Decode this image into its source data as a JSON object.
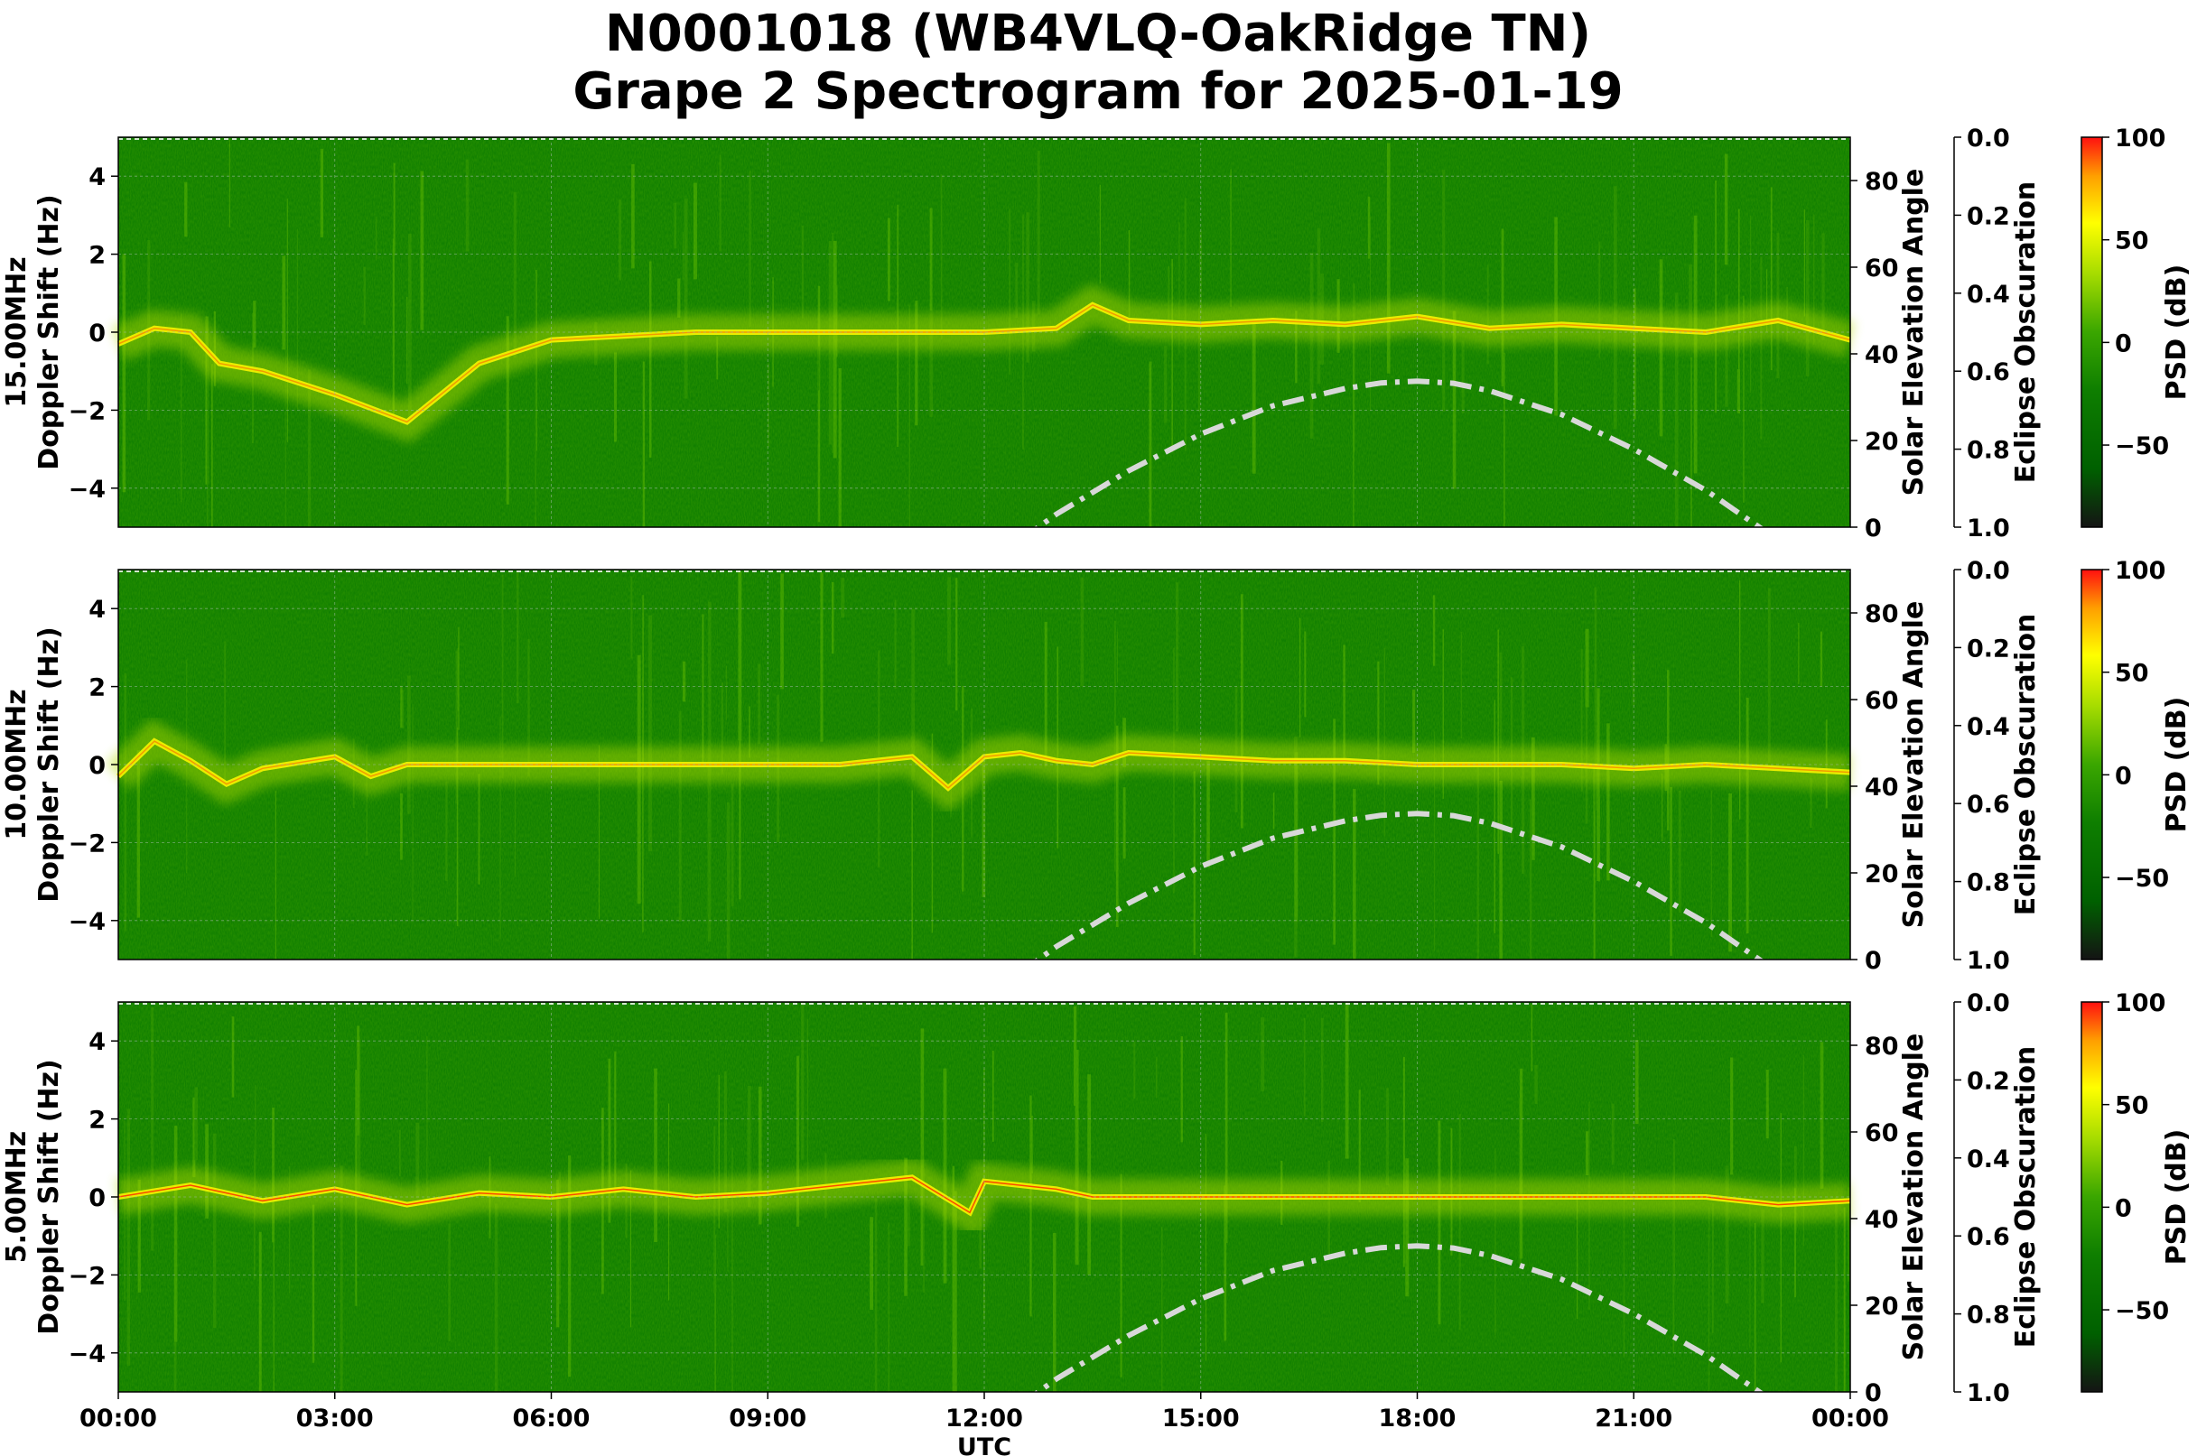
{
  "title": {
    "line1": "N0001018 (WB4VLQ-OakRidge TN)",
    "line2": "Grape 2 Spectrogram for 2025-01-19"
  },
  "colors": {
    "background_green": "#0a7a00",
    "trace_yellow": "#f0f000",
    "trace_red": "#ff2000",
    "solar_curve": "#d8d8d8",
    "colormap": [
      "#141414",
      "#006400",
      "#1a8a00",
      "#5cbf00",
      "#b4e000",
      "#ffff00",
      "#ffb000",
      "#ff1a00"
    ]
  },
  "chart_data": {
    "type": "heatmap",
    "subtype": "spectrogram",
    "x_axis": {
      "label": "UTC",
      "range": [
        "00:00",
        "24:00"
      ],
      "ticks": [
        "00:00",
        "03:00",
        "06:00",
        "09:00",
        "12:00",
        "15:00",
        "18:00",
        "21:00",
        "00:00"
      ]
    },
    "solar_elevation": {
      "hours": [
        12.5,
        13,
        14,
        15,
        16,
        17,
        17.5,
        18,
        18.5,
        19,
        20,
        21,
        22,
        23
      ],
      "degrees": [
        -3,
        3,
        13,
        21.5,
        28,
        32,
        33.3,
        33.7,
        33.2,
        31.5,
        26,
        18,
        8.5,
        -3
      ]
    },
    "panels": [
      {
        "frequency": "15.00MHz",
        "ylabel": "Doppler Shift (Hz)",
        "ylim": [
          -5,
          5
        ],
        "yticks": [
          "4",
          "2",
          "0",
          "−2",
          "−4"
        ],
        "elev_label": "Solar Elevation Angle",
        "elev_ylim": [
          0,
          90
        ],
        "elev_ticks": [
          "80",
          "60",
          "40",
          "20",
          "0"
        ],
        "eclipse_label": "Eclipse Obscuration",
        "eclipse_ylim": [
          1.0,
          0.0
        ],
        "eclipse_ticks": [
          "0.0",
          "0.2",
          "0.4",
          "0.6",
          "0.8",
          "1.0"
        ],
        "psd_label": "PSD (dB)",
        "psd_range": [
          -90,
          100
        ],
        "psd_ticks": [
          "100",
          "50",
          "0",
          "−50"
        ],
        "trace": {
          "hours": [
            0,
            0.5,
            1.0,
            1.4,
            2,
            3,
            4,
            5,
            6,
            7,
            8,
            9,
            10,
            11,
            12,
            13,
            13.5,
            14,
            15,
            16,
            17,
            18,
            19,
            20,
            21,
            22,
            23,
            24
          ],
          "doppler_hz": [
            -0.3,
            0.1,
            0.0,
            -0.8,
            -1.0,
            -1.6,
            -2.3,
            -0.8,
            -0.2,
            -0.1,
            0.0,
            0.0,
            0.0,
            0.0,
            0.0,
            0.1,
            0.7,
            0.3,
            0.2,
            0.3,
            0.2,
            0.4,
            0.1,
            0.2,
            0.1,
            0.0,
            0.3,
            -0.2
          ]
        }
      },
      {
        "frequency": "10.00MHz",
        "ylabel": "Doppler Shift (Hz)",
        "ylim": [
          -5,
          5
        ],
        "yticks": [
          "4",
          "2",
          "0",
          "−2",
          "−4"
        ],
        "elev_label": "Solar Elevation Angle",
        "elev_ylim": [
          0,
          90
        ],
        "elev_ticks": [
          "80",
          "60",
          "40",
          "20",
          "0"
        ],
        "eclipse_label": "Eclipse Obscuration",
        "eclipse_ylim": [
          1.0,
          0.0
        ],
        "eclipse_ticks": [
          "0.0",
          "0.2",
          "0.4",
          "0.6",
          "0.8",
          "1.0"
        ],
        "psd_label": "PSD (dB)",
        "psd_range": [
          -90,
          100
        ],
        "psd_ticks": [
          "100",
          "50",
          "0",
          "−50"
        ],
        "trace": {
          "hours": [
            0,
            0.5,
            1.0,
            1.5,
            2,
            3,
            3.5,
            4,
            6,
            8,
            9,
            10,
            11,
            11.5,
            12,
            12.5,
            13,
            13.5,
            14,
            15,
            16,
            17,
            18,
            19,
            20,
            21,
            22,
            23,
            24
          ],
          "doppler_hz": [
            -0.3,
            0.6,
            0.1,
            -0.5,
            -0.1,
            0.2,
            -0.3,
            0.0,
            0.0,
            0.0,
            0.0,
            0.0,
            0.2,
            -0.6,
            0.2,
            0.3,
            0.1,
            0.0,
            0.3,
            0.2,
            0.1,
            0.1,
            0.0,
            0.0,
            0.0,
            -0.1,
            0.0,
            -0.1,
            -0.2
          ]
        }
      },
      {
        "frequency": "5.00MHz",
        "ylabel": "Doppler Shift (Hz)",
        "ylim": [
          -5,
          5
        ],
        "yticks": [
          "4",
          "2",
          "0",
          "−2",
          "−4"
        ],
        "elev_label": "Solar Elevation Angle",
        "elev_ylim": [
          0,
          90
        ],
        "elev_ticks": [
          "80",
          "60",
          "40",
          "20",
          "0"
        ],
        "eclipse_label": "Eclipse Obscuration",
        "eclipse_ylim": [
          1.0,
          0.0
        ],
        "eclipse_ticks": [
          "0.0",
          "0.2",
          "0.4",
          "0.6",
          "0.8",
          "1.0"
        ],
        "psd_label": "PSD (dB)",
        "psd_range": [
          -90,
          100
        ],
        "psd_ticks": [
          "100",
          "50",
          "0",
          "−50"
        ],
        "trace": {
          "hours": [
            0,
            1,
            2,
            3,
            4,
            5,
            6,
            7,
            8,
            9,
            10,
            11,
            11.8,
            12,
            13,
            13.5,
            14,
            15,
            16,
            17,
            18,
            19,
            20,
            21,
            22,
            23,
            24
          ],
          "doppler_hz": [
            0.0,
            0.3,
            -0.1,
            0.2,
            -0.2,
            0.1,
            0.0,
            0.2,
            0.0,
            0.1,
            0.3,
            0.5,
            -0.4,
            0.4,
            0.2,
            0.0,
            0.0,
            0.0,
            0.0,
            0.0,
            0.0,
            0.0,
            0.0,
            0.0,
            0.0,
            -0.2,
            -0.1
          ]
        }
      }
    ]
  }
}
